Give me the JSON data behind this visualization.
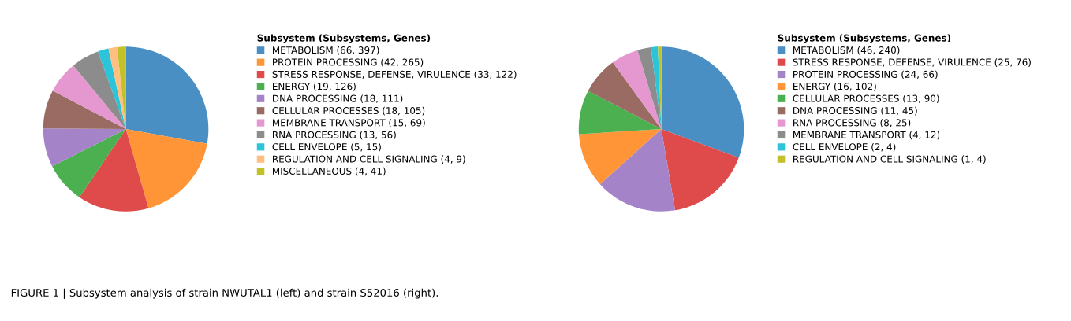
{
  "chart_data": [
    {
      "type": "pie",
      "legend_title": "Subsystem (Subsystems, Genes)",
      "legend": "right",
      "categories": [
        "METABOLISM (66, 397)",
        "PROTEIN PROCESSING (42, 265)",
        "STRESS RESPONSE, DEFENSE, VIRULENCE (33, 122)",
        "ENERGY (19, 126)",
        "DNA PROCESSING (18, 111)",
        "CELLULAR PROCESSES (18, 105)",
        "MEMBRANE TRANSPORT (15, 69)",
        "RNA PROCESSING (13, 56)",
        "CELL ENVELOPE (5, 15)",
        "REGULATION AND CELL SIGNALING (4, 9)",
        "MISCELLANEOUS (4, 41)"
      ],
      "values": [
        66,
        42,
        33,
        19,
        18,
        18,
        15,
        13,
        5,
        4,
        4
      ],
      "colors": [
        "#4a8fc4",
        "#ff9537",
        "#df4a4a",
        "#4caf50",
        "#a583c8",
        "#9a6b62",
        "#e597d0",
        "#8c8c8c",
        "#2cc4d8",
        "#ffbf80",
        "#c2c12a"
      ],
      "annotations": [
        "FIGURE 1 | Subsystem analysis of strain NWUTAL1 (left) and strain S52016 (right)."
      ]
    },
    {
      "type": "pie",
      "legend_title": "Subsystem (Subsystems, Genes)",
      "legend": "right",
      "categories": [
        "METABOLISM (46, 240)",
        "STRESS RESPONSE, DEFENSE, VIRULENCE (25, 76)",
        "PROTEIN PROCESSING (24, 66)",
        "ENERGY (16, 102)",
        "CELLULAR PROCESSES (13, 90)",
        "DNA PROCESSING (11, 45)",
        "RNA PROCESSING (8, 25)",
        "MEMBRANE TRANSPORT (4, 12)",
        "CELL ENVELOPE (2, 4)",
        "REGULATION AND CELL SIGNALING (1, 4)"
      ],
      "values": [
        46,
        25,
        24,
        16,
        13,
        11,
        8,
        4,
        2,
        1
      ],
      "colors": [
        "#4a8fc4",
        "#df4a4a",
        "#a583c8",
        "#ff9537",
        "#4caf50",
        "#9a6b62",
        "#e597d0",
        "#8c8c8c",
        "#2cc4d8",
        "#c2c12a"
      ]
    }
  ]
}
